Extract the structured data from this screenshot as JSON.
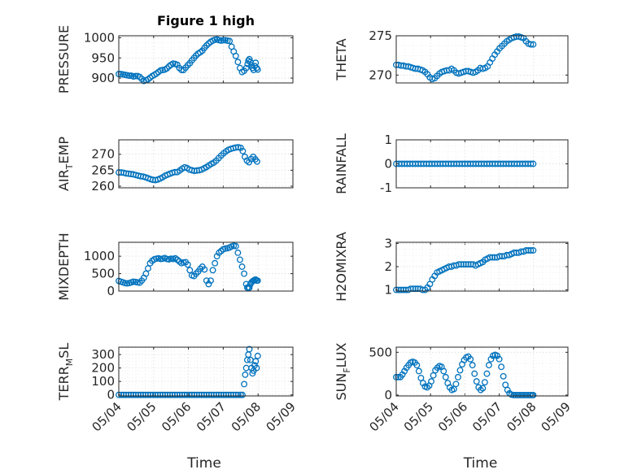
{
  "colors": {
    "marker": "#0072BD",
    "axis": "#262626"
  },
  "chart_data": [
    {
      "type": "scatter",
      "title": "Figure 1 high",
      "ylabel_main": "PRESSURE",
      "ylabel_sub": "",
      "ylabel_tail": "",
      "yticks": [
        900,
        950,
        1000
      ],
      "ylim": [
        888,
        1005
      ],
      "xlim": [
        0,
        5
      ],
      "x": [
        0,
        0.06,
        0.12,
        0.18,
        0.24,
        0.3,
        0.36,
        0.42,
        0.48,
        0.54,
        0.6,
        0.66,
        0.72,
        0.78,
        0.84,
        0.9,
        0.96,
        1.02,
        1.08,
        1.14,
        1.2,
        1.26,
        1.32,
        1.38,
        1.44,
        1.5,
        1.56,
        1.62,
        1.68,
        1.74,
        1.8,
        1.86,
        1.92,
        1.98,
        2.04,
        2.1,
        2.16,
        2.22,
        2.28,
        2.34,
        2.4,
        2.46,
        2.52,
        2.58,
        2.64,
        2.7,
        2.76,
        2.82,
        2.88,
        2.94,
        3.0,
        3.06,
        3.12,
        3.18,
        3.24,
        3.3,
        3.36,
        3.42,
        3.48,
        3.54,
        3.6,
        3.66,
        3.7,
        3.72,
        3.75,
        3.78,
        3.81,
        3.84,
        3.87,
        3.9,
        3.93,
        3.96,
        3.99
      ],
      "y": [
        910,
        910,
        909,
        908,
        907,
        906,
        906,
        904,
        905,
        905,
        903,
        898,
        893,
        895,
        897,
        901,
        905,
        908,
        911,
        915,
        919,
        920,
        921,
        924,
        929,
        933,
        936,
        935,
        933,
        925,
        920,
        920,
        926,
        932,
        937,
        944,
        950,
        956,
        961,
        964,
        968,
        975,
        981,
        986,
        990,
        993,
        995,
        996,
        994,
        993,
        994,
        994,
        993,
        992,
        978,
        966,
        955,
        940,
        925,
        915,
        918,
        925,
        935,
        943,
        947,
        940,
        932,
        925,
        920,
        930,
        938,
        925,
        921
      ]
    },
    {
      "type": "scatter",
      "title": "",
      "ylabel_main": "THETA",
      "ylabel_sub": "",
      "ylabel_tail": "",
      "yticks": [
        270,
        275
      ],
      "ylim": [
        269,
        275
      ],
      "xlim": [
        0,
        5
      ],
      "x": [
        0,
        0.07,
        0.14,
        0.21,
        0.28,
        0.35,
        0.42,
        0.49,
        0.56,
        0.63,
        0.7,
        0.77,
        0.84,
        0.91,
        0.98,
        1.05,
        1.12,
        1.19,
        1.26,
        1.33,
        1.4,
        1.47,
        1.54,
        1.61,
        1.68,
        1.75,
        1.82,
        1.89,
        1.96,
        2.03,
        2.1,
        2.17,
        2.24,
        2.31,
        2.38,
        2.45,
        2.52,
        2.59,
        2.66,
        2.73,
        2.8,
        2.87,
        2.94,
        3.01,
        3.08,
        3.15,
        3.22,
        3.29,
        3.36,
        3.43,
        3.5,
        3.57,
        3.64,
        3.71,
        3.78,
        3.85,
        3.92,
        3.99
      ],
      "y": [
        271.3,
        271.3,
        271.2,
        271.2,
        271.1,
        271.1,
        271.0,
        270.9,
        270.8,
        270.8,
        270.7,
        270.6,
        270.4,
        270.1,
        269.7,
        269.5,
        269.6,
        269.9,
        270.2,
        270.4,
        270.5,
        270.6,
        270.6,
        270.8,
        270.6,
        270.3,
        270.2,
        270.3,
        270.4,
        270.5,
        270.5,
        270.4,
        270.3,
        270.4,
        270.6,
        270.9,
        270.8,
        270.9,
        271.1,
        271.6,
        272.1,
        272.6,
        273.0,
        273.4,
        273.7,
        274.0,
        274.3,
        274.5,
        274.7,
        274.8,
        274.9,
        274.9,
        274.8,
        274.7,
        274.3,
        274.0,
        273.9,
        273.9
      ]
    },
    {
      "type": "scatter",
      "title": "",
      "ylabel_main": "AIR",
      "ylabel_sub": "T",
      "ylabel_tail": "EMP",
      "yticks": [
        260,
        265,
        270
      ],
      "ylim": [
        259.5,
        274.5
      ],
      "xlim": [
        0,
        5
      ],
      "x": [
        0,
        0.07,
        0.14,
        0.21,
        0.28,
        0.35,
        0.42,
        0.49,
        0.56,
        0.63,
        0.7,
        0.77,
        0.84,
        0.91,
        0.98,
        1.05,
        1.12,
        1.19,
        1.26,
        1.33,
        1.4,
        1.47,
        1.54,
        1.61,
        1.68,
        1.75,
        1.82,
        1.89,
        1.96,
        2.03,
        2.1,
        2.17,
        2.24,
        2.31,
        2.38,
        2.45,
        2.52,
        2.59,
        2.66,
        2.73,
        2.8,
        2.87,
        2.94,
        3.01,
        3.08,
        3.15,
        3.22,
        3.29,
        3.36,
        3.43,
        3.5,
        3.56,
        3.62,
        3.68,
        3.74,
        3.8,
        3.86,
        3.92,
        3.97
      ],
      "y": [
        264.3,
        264.3,
        264.2,
        264.0,
        263.9,
        263.8,
        263.7,
        263.5,
        263.3,
        263.1,
        263.0,
        262.8,
        262.5,
        262.2,
        262.0,
        261.9,
        262.1,
        262.4,
        262.8,
        263.3,
        263.6,
        263.9,
        264.2,
        264.4,
        264.4,
        264.9,
        265.5,
        265.9,
        265.7,
        265.2,
        265.0,
        264.8,
        264.9,
        265.0,
        265.2,
        265.6,
        266.0,
        266.5,
        267.0,
        267.4,
        268.0,
        268.8,
        269.6,
        270.3,
        270.9,
        271.4,
        271.7,
        271.9,
        272.1,
        272.2,
        272.0,
        271.0,
        269.2,
        268.0,
        267.5,
        268.5,
        269.2,
        268.4,
        267.7
      ]
    },
    {
      "type": "scatter",
      "title": "",
      "ylabel_main": "RAINFALL",
      "ylabel_sub": "",
      "ylabel_tail": "",
      "yticks": [
        -1,
        0,
        1
      ],
      "ylim": [
        -1,
        1
      ],
      "xlim": [
        0,
        5
      ],
      "x": [
        0,
        0.08,
        0.16,
        0.24,
        0.32,
        0.4,
        0.48,
        0.56,
        0.64,
        0.72,
        0.8,
        0.88,
        0.96,
        1.04,
        1.12,
        1.2,
        1.28,
        1.36,
        1.44,
        1.52,
        1.6,
        1.68,
        1.76,
        1.84,
        1.92,
        2.0,
        2.08,
        2.16,
        2.24,
        2.32,
        2.4,
        2.48,
        2.56,
        2.64,
        2.72,
        2.8,
        2.88,
        2.96,
        3.04,
        3.12,
        3.2,
        3.28,
        3.36,
        3.44,
        3.52,
        3.6,
        3.68,
        3.76,
        3.84,
        3.92,
        3.99
      ],
      "y": [
        0,
        0,
        0,
        0,
        0,
        0,
        0,
        0,
        0,
        0,
        0,
        0,
        0,
        0,
        0,
        0,
        0,
        0,
        0,
        0,
        0,
        0,
        0,
        0,
        0,
        0,
        0,
        0,
        0,
        0,
        0,
        0,
        0,
        0,
        0,
        0,
        0,
        0,
        0,
        0,
        0,
        0,
        0,
        0,
        0,
        0,
        0,
        0,
        0,
        0,
        0
      ]
    },
    {
      "type": "scatter",
      "title": "",
      "ylabel_main": "MIXDEPTH",
      "ylabel_sub": "",
      "ylabel_tail": "",
      "yticks": [
        0,
        500,
        1000
      ],
      "ylim": [
        0,
        1400
      ],
      "xlim": [
        0,
        5
      ],
      "x": [
        0,
        0.06,
        0.12,
        0.18,
        0.24,
        0.3,
        0.36,
        0.42,
        0.48,
        0.54,
        0.6,
        0.66,
        0.72,
        0.78,
        0.84,
        0.9,
        0.96,
        1.02,
        1.08,
        1.14,
        1.2,
        1.26,
        1.32,
        1.38,
        1.44,
        1.5,
        1.56,
        1.62,
        1.68,
        1.74,
        1.8,
        1.86,
        1.92,
        1.98,
        2.04,
        2.1,
        2.16,
        2.22,
        2.28,
        2.34,
        2.4,
        2.46,
        2.52,
        2.58,
        2.64,
        2.7,
        2.76,
        2.82,
        2.88,
        2.94,
        3.0,
        3.06,
        3.12,
        3.18,
        3.24,
        3.3,
        3.36,
        3.42,
        3.48,
        3.54,
        3.6,
        3.66,
        3.69,
        3.72,
        3.75,
        3.78,
        3.81,
        3.84,
        3.87,
        3.9,
        3.93,
        3.96,
        3.99
      ],
      "y": [
        290,
        270,
        250,
        230,
        220,
        230,
        250,
        270,
        260,
        250,
        240,
        300,
        380,
        500,
        650,
        800,
        870,
        910,
        930,
        940,
        920,
        930,
        950,
        920,
        910,
        930,
        920,
        940,
        900,
        850,
        800,
        820,
        830,
        760,
        600,
        450,
        430,
        500,
        560,
        640,
        700,
        620,
        300,
        200,
        300,
        600,
        800,
        1000,
        1100,
        1150,
        1200,
        1220,
        1230,
        1250,
        1280,
        1300,
        1290,
        1100,
        900,
        700,
        500,
        200,
        100,
        80,
        100,
        200,
        250,
        280,
        300,
        320,
        330,
        300,
        300
      ]
    },
    {
      "type": "scatter",
      "title": "",
      "ylabel_main": "H2OMIXRA",
      "ylabel_sub": "",
      "ylabel_tail": "",
      "yticks": [
        1,
        2,
        3
      ],
      "ylim": [
        0.95,
        3.05
      ],
      "xlim": [
        0,
        5
      ],
      "x": [
        0,
        0.07,
        0.14,
        0.21,
        0.28,
        0.35,
        0.42,
        0.49,
        0.56,
        0.63,
        0.7,
        0.77,
        0.84,
        0.91,
        0.98,
        1.05,
        1.12,
        1.19,
        1.26,
        1.33,
        1.4,
        1.47,
        1.54,
        1.61,
        1.68,
        1.75,
        1.82,
        1.89,
        1.96,
        2.03,
        2.1,
        2.17,
        2.24,
        2.31,
        2.38,
        2.45,
        2.52,
        2.59,
        2.66,
        2.73,
        2.8,
        2.87,
        2.94,
        3.01,
        3.08,
        3.15,
        3.22,
        3.29,
        3.36,
        3.43,
        3.5,
        3.57,
        3.64,
        3.71,
        3.78,
        3.85,
        3.92,
        3.99
      ],
      "y": [
        1.0,
        1.0,
        1.0,
        1.0,
        1.0,
        1.0,
        1.05,
        1.05,
        1.05,
        1.05,
        1.05,
        1.0,
        1.0,
        1.1,
        1.25,
        1.45,
        1.6,
        1.75,
        1.8,
        1.85,
        1.9,
        1.95,
        2.0,
        2.0,
        2.05,
        2.05,
        2.1,
        2.1,
        2.1,
        2.1,
        2.1,
        2.1,
        2.1,
        2.05,
        2.1,
        2.15,
        2.2,
        2.3,
        2.35,
        2.4,
        2.4,
        2.4,
        2.4,
        2.45,
        2.45,
        2.45,
        2.5,
        2.5,
        2.55,
        2.6,
        2.6,
        2.6,
        2.65,
        2.65,
        2.7,
        2.7,
        2.7,
        2.7
      ]
    },
    {
      "type": "scatter",
      "title": "",
      "ylabel_main": "TERR",
      "ylabel_sub": "M",
      "ylabel_tail": "SL",
      "yticks": [
        0,
        100,
        200,
        300
      ],
      "ylim": [
        -8,
        355
      ],
      "xlim": [
        0,
        5
      ],
      "x": [
        0,
        0.07,
        0.14,
        0.21,
        0.28,
        0.35,
        0.42,
        0.49,
        0.56,
        0.63,
        0.7,
        0.77,
        0.84,
        0.91,
        0.98,
        1.05,
        1.12,
        1.19,
        1.26,
        1.33,
        1.4,
        1.47,
        1.54,
        1.61,
        1.68,
        1.75,
        1.82,
        1.89,
        1.96,
        2.03,
        2.1,
        2.17,
        2.24,
        2.31,
        2.38,
        2.45,
        2.52,
        2.59,
        2.66,
        2.73,
        2.8,
        2.87,
        2.94,
        3.01,
        3.08,
        3.15,
        3.22,
        3.29,
        3.36,
        3.43,
        3.5,
        3.55,
        3.6,
        3.63,
        3.66,
        3.69,
        3.72,
        3.75,
        3.78,
        3.81,
        3.84,
        3.87,
        3.9,
        3.93,
        3.96,
        3.99
      ],
      "y": [
        0,
        0,
        0,
        0,
        0,
        0,
        0,
        0,
        0,
        0,
        0,
        0,
        0,
        0,
        0,
        0,
        0,
        0,
        0,
        0,
        0,
        0,
        0,
        0,
        0,
        0,
        0,
        0,
        0,
        0,
        0,
        0,
        0,
        0,
        0,
        0,
        0,
        0,
        0,
        0,
        0,
        0,
        0,
        0,
        0,
        0,
        0,
        0,
        0,
        0,
        0,
        0,
        80,
        150,
        200,
        260,
        300,
        340,
        260,
        200,
        160,
        180,
        220,
        250,
        200,
        290
      ]
    },
    {
      "type": "scatter",
      "title": "",
      "ylabel_main": "SUN",
      "ylabel_sub": "F",
      "ylabel_tail": "LUX",
      "yticks": [
        0,
        500
      ],
      "ylim": [
        -10,
        560
      ],
      "xlim": [
        0,
        5
      ],
      "x": [
        0,
        0.06,
        0.12,
        0.18,
        0.24,
        0.3,
        0.36,
        0.42,
        0.48,
        0.54,
        0.6,
        0.66,
        0.72,
        0.78,
        0.84,
        0.9,
        0.96,
        1.02,
        1.08,
        1.14,
        1.2,
        1.26,
        1.32,
        1.38,
        1.44,
        1.5,
        1.56,
        1.62,
        1.68,
        1.74,
        1.8,
        1.86,
        1.92,
        1.98,
        2.04,
        2.1,
        2.16,
        2.22,
        2.28,
        2.34,
        2.4,
        2.46,
        2.52,
        2.58,
        2.64,
        2.7,
        2.76,
        2.82,
        2.88,
        2.94,
        3.0,
        3.06,
        3.12,
        3.18,
        3.24,
        3.3,
        3.36,
        3.42,
        3.48,
        3.54,
        3.6,
        3.66,
        3.72,
        3.78,
        3.84,
        3.9,
        3.96,
        3.99
      ],
      "y": [
        210,
        210,
        210,
        240,
        280,
        320,
        350,
        380,
        390,
        380,
        350,
        280,
        200,
        140,
        100,
        90,
        110,
        160,
        230,
        290,
        320,
        340,
        330,
        280,
        210,
        140,
        90,
        60,
        70,
        130,
        210,
        290,
        360,
        410,
        440,
        450,
        420,
        350,
        250,
        160,
        90,
        60,
        80,
        150,
        250,
        350,
        420,
        460,
        470,
        460,
        420,
        330,
        220,
        120,
        60,
        20,
        5,
        0,
        0,
        0,
        0,
        0,
        0,
        0,
        0,
        0,
        0,
        0
      ]
    }
  ],
  "xaxis": {
    "ticklabels": [
      "05/04",
      "05/05",
      "05/06",
      "05/07",
      "05/08",
      "05/09"
    ],
    "label": "Time"
  }
}
